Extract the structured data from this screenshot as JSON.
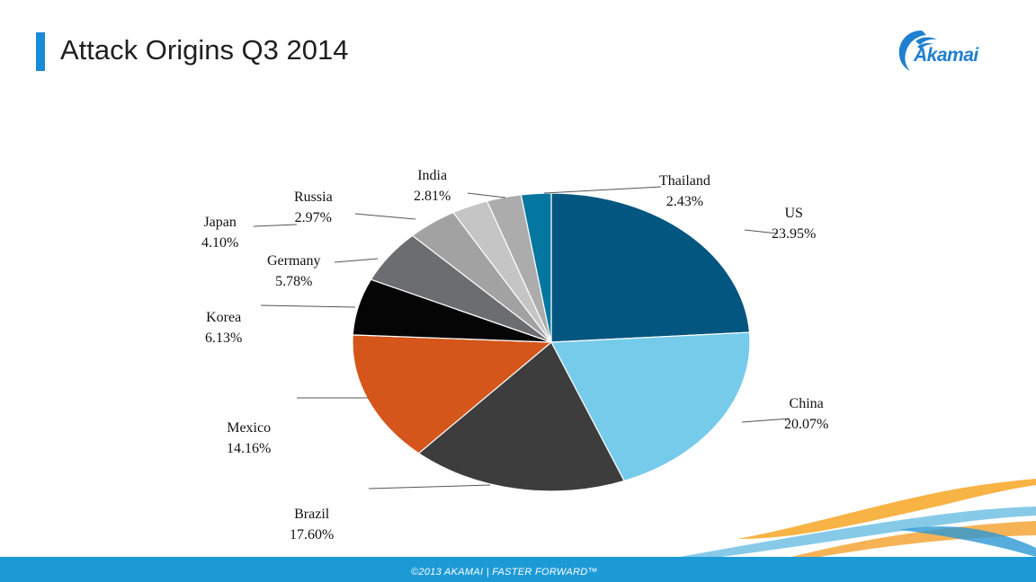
{
  "header": {
    "title": "Attack Origins Q3 2014",
    "logo_text": "Akamai"
  },
  "footer": {
    "text": "©2013 AKAMAI | FASTER FORWARD™"
  },
  "colors": {
    "accent_bar": "#1a8bd6",
    "logo_blue": "#1f7fd0",
    "logo_orange": "#f39a1e",
    "footer_bar": "#1c9ad6"
  },
  "chart_data": {
    "type": "pie",
    "title": "",
    "slices": [
      {
        "label": "US",
        "value_label": "23.95%",
        "value": 23.95,
        "color": "#03567f"
      },
      {
        "label": "China",
        "value_label": "20.07%",
        "value": 20.07,
        "color": "#76cbea"
      },
      {
        "label": "Brazil",
        "value_label": "17.60%",
        "value": 17.6,
        "color": "#3d3d3d"
      },
      {
        "label": "Mexico",
        "value_label": "14.16%",
        "value": 14.16,
        "color": "#d4561b"
      },
      {
        "label": "Korea",
        "value_label": "6.13%",
        "value": 6.13,
        "color": "#050505"
      },
      {
        "label": "Germany",
        "value_label": "5.78%",
        "value": 5.78,
        "color": "#6c6d70"
      },
      {
        "label": "Japan",
        "value_label": "4.10%",
        "value": 4.1,
        "color": "#a2a2a2"
      },
      {
        "label": "Russia",
        "value_label": "2.97%",
        "value": 2.97,
        "color": "#c5c5c5"
      },
      {
        "label": "India",
        "value_label": "2.81%",
        "value": 2.81,
        "color": "#acacac"
      },
      {
        "label": "Thailand",
        "value_label": "2.43%",
        "value": 2.43,
        "color": "#0477a0"
      }
    ],
    "legend": "none"
  }
}
